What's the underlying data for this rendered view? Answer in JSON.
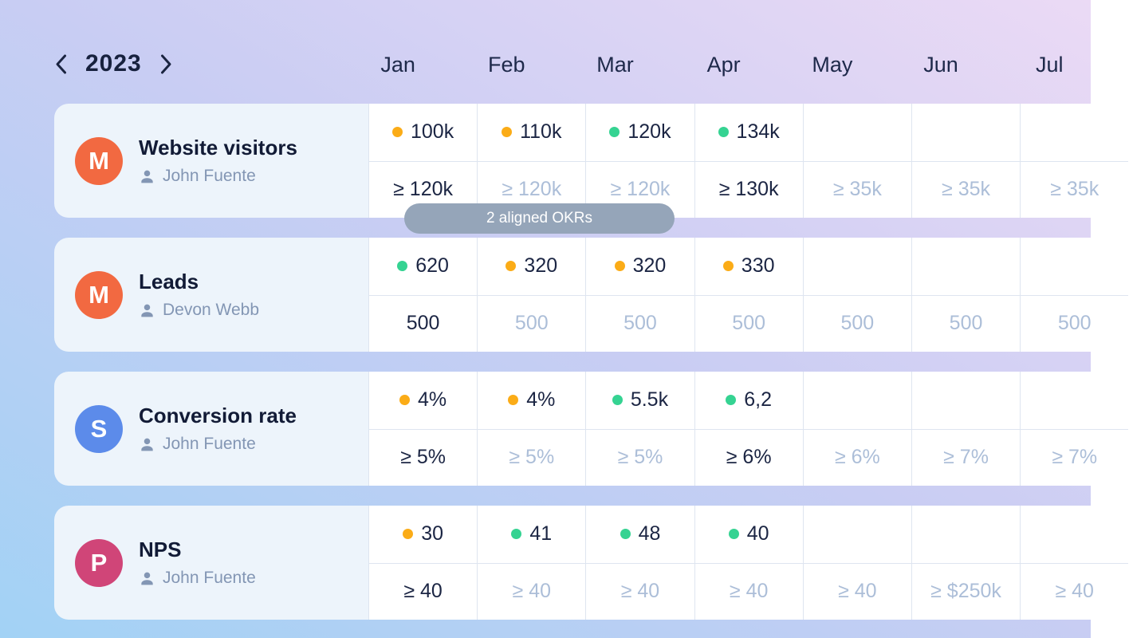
{
  "header": {
    "year": "2023",
    "months": [
      "Jan",
      "Feb",
      "Mar",
      "Apr",
      "May",
      "Jun",
      "Jul"
    ]
  },
  "badge": {
    "label": "2 aligned OKRs"
  },
  "status_colors": {
    "at-risk": "#FBAC17",
    "on-track": "#35D392"
  },
  "icon_colors": {
    "person": "#8396B4",
    "chevron": "#1A2440"
  },
  "rows": [
    {
      "title": "Website visitors",
      "owner": "John Fuente",
      "avatar_letter": "M",
      "avatar_color": "#F26941",
      "actuals": [
        {
          "value": "100k",
          "status": "at-risk"
        },
        {
          "value": "110k",
          "status": "at-risk"
        },
        {
          "value": "120k",
          "status": "on-track"
        },
        {
          "value": "134k",
          "status": "on-track"
        },
        null,
        null,
        null
      ],
      "targets": [
        {
          "value": "≥ 120k",
          "set": true
        },
        {
          "value": "≥ 120k",
          "set": false
        },
        {
          "value": "≥ 120k",
          "set": false
        },
        {
          "value": "≥ 130k",
          "set": true
        },
        {
          "value": "≥ 35k",
          "set": false
        },
        {
          "value": "≥ 35k",
          "set": false
        },
        {
          "value": "≥ 35k",
          "set": false
        }
      ]
    },
    {
      "title": "Leads",
      "owner": "Devon Webb",
      "avatar_letter": "M",
      "avatar_color": "#F26941",
      "actuals": [
        {
          "value": "620",
          "status": "on-track"
        },
        {
          "value": "320",
          "status": "at-risk"
        },
        {
          "value": "320",
          "status": "at-risk"
        },
        {
          "value": "330",
          "status": "at-risk"
        },
        null,
        null,
        null
      ],
      "targets": [
        {
          "value": "500",
          "set": true
        },
        {
          "value": "500",
          "set": false
        },
        {
          "value": "500",
          "set": false
        },
        {
          "value": "500",
          "set": false
        },
        {
          "value": "500",
          "set": false
        },
        {
          "value": "500",
          "set": false
        },
        {
          "value": "500",
          "set": false
        }
      ]
    },
    {
      "title": "Conversion rate",
      "owner": "John Fuente",
      "avatar_letter": "S",
      "avatar_color": "#5C8BEA",
      "actuals": [
        {
          "value": "4%",
          "status": "at-risk"
        },
        {
          "value": "4%",
          "status": "at-risk"
        },
        {
          "value": "5.5k",
          "status": "on-track"
        },
        {
          "value": "6,2",
          "status": "on-track"
        },
        null,
        null,
        null
      ],
      "targets": [
        {
          "value": "≥ 5%",
          "set": true
        },
        {
          "value": "≥ 5%",
          "set": false
        },
        {
          "value": "≥ 5%",
          "set": false
        },
        {
          "value": "≥ 6%",
          "set": true
        },
        {
          "value": "≥ 6%",
          "set": false
        },
        {
          "value": "≥ 7%",
          "set": false
        },
        {
          "value": "≥ 7%",
          "set": false
        }
      ]
    },
    {
      "title": "NPS",
      "owner": "John Fuente",
      "avatar_letter": "P",
      "avatar_color": "#D04578",
      "actuals": [
        {
          "value": "30",
          "status": "at-risk"
        },
        {
          "value": "41",
          "status": "on-track"
        },
        {
          "value": "48",
          "status": "on-track"
        },
        {
          "value": "40",
          "status": "on-track"
        },
        null,
        null,
        null
      ],
      "targets": [
        {
          "value": "≥ 40",
          "set": true
        },
        {
          "value": "≥ 40",
          "set": false
        },
        {
          "value": "≥ 40",
          "set": false
        },
        {
          "value": "≥ 40",
          "set": false
        },
        {
          "value": "≥ 40",
          "set": false
        },
        {
          "value": "≥ $250k",
          "set": false
        },
        {
          "value": "≥ 40",
          "set": false
        }
      ]
    }
  ]
}
